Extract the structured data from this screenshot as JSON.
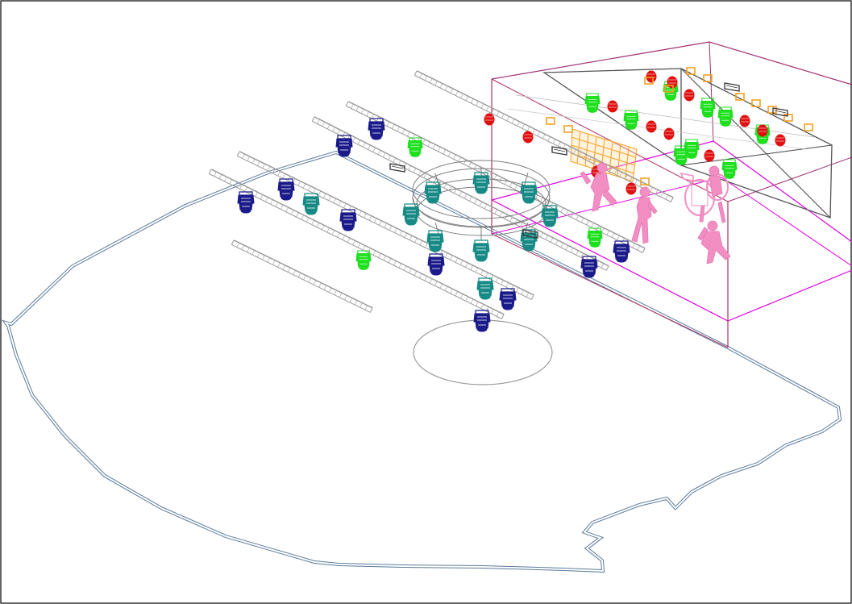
{
  "scene": {
    "background": "#ffffff",
    "frame_color": "#000000",
    "floor_outline_color": "#5b7a9c",
    "truss_color": "#9a9a9a",
    "circle_truss_color": "#7d7d7d",
    "spot_circle_color": "#9b9b9b",
    "stage_box_color": "#b0305a",
    "stage_floor_color": "#e000e0",
    "backdrop_color": "#555555",
    "performer_color": "#f38ec3",
    "fixture_colors": {
      "moving_head_blue": "#1a1a8a",
      "moving_head_teal": "#178a86",
      "spot_green": "#1ee01e",
      "par_red": "#e01010",
      "blinder_orange": "#f5a020",
      "cyc_light_gray": "#666666"
    }
  }
}
